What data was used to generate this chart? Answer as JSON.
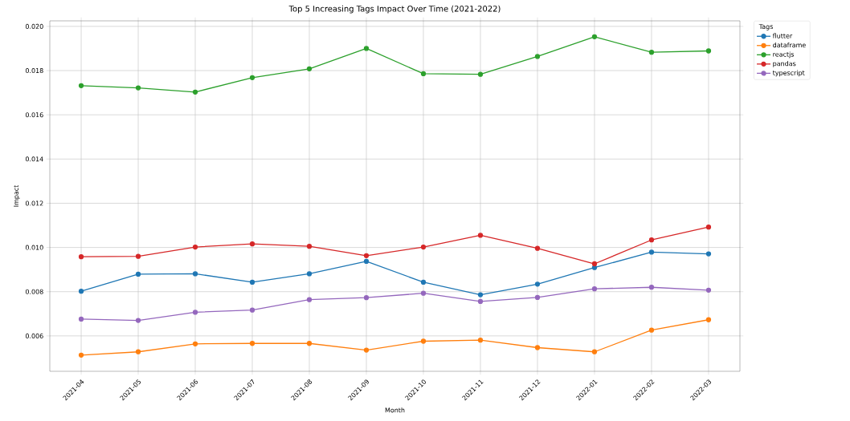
{
  "chart_data": {
    "type": "line",
    "title": "Top 5 Increasing Tags Impact Over Time (2021-2022)",
    "xlabel": "Month",
    "ylabel": "Impact",
    "legend_title": "Tags",
    "categories": [
      "2021-04",
      "2021-05",
      "2021-06",
      "2021-07",
      "2021-08",
      "2021-09",
      "2021-10",
      "2021-11",
      "2021-12",
      "2022-01",
      "2022-02",
      "2022-03"
    ],
    "series": [
      {
        "name": "flutter",
        "color": "#1f77b4",
        "values": [
          0.00802,
          0.00879,
          0.00881,
          0.00843,
          0.00881,
          0.00937,
          0.00843,
          0.00786,
          0.00834,
          0.00909,
          0.00979,
          0.00971
        ]
      },
      {
        "name": "dataframe",
        "color": "#ff7f0e",
        "values": [
          0.00513,
          0.00528,
          0.00564,
          0.00566,
          0.00566,
          0.00536,
          0.00576,
          0.00581,
          0.00547,
          0.00528,
          0.00626,
          0.00673
        ]
      },
      {
        "name": "reactjs",
        "color": "#2ca02c",
        "values": [
          0.01732,
          0.01722,
          0.01703,
          0.01768,
          0.01808,
          0.019,
          0.01786,
          0.01783,
          0.01864,
          0.01953,
          0.01883,
          0.01889
        ]
      },
      {
        "name": "pandas",
        "color": "#d62728",
        "values": [
          0.00958,
          0.0096,
          0.01002,
          0.01016,
          0.01005,
          0.00963,
          0.01002,
          0.01055,
          0.00996,
          0.00926,
          0.01034,
          0.01092
        ]
      },
      {
        "name": "typescript",
        "color": "#9467bd",
        "values": [
          0.00676,
          0.0067,
          0.00707,
          0.00717,
          0.00764,
          0.00773,
          0.00793,
          0.00756,
          0.00774,
          0.00813,
          0.0082,
          0.00807
        ]
      }
    ],
    "ylim": [
      0.0044,
      0.02025
    ],
    "yticks": [
      {
        "value": 0.006,
        "label": "0.006"
      },
      {
        "value": 0.008,
        "label": "0.008"
      },
      {
        "value": 0.01,
        "label": "0.010"
      },
      {
        "value": 0.012,
        "label": "0.012"
      },
      {
        "value": 0.014,
        "label": "0.014"
      },
      {
        "value": 0.016,
        "label": "0.016"
      },
      {
        "value": 0.018,
        "label": "0.018"
      },
      {
        "value": 0.02,
        "label": "0.020"
      }
    ],
    "grid": true,
    "legend": "top right",
    "marker": "circle",
    "line_style": "solid"
  }
}
